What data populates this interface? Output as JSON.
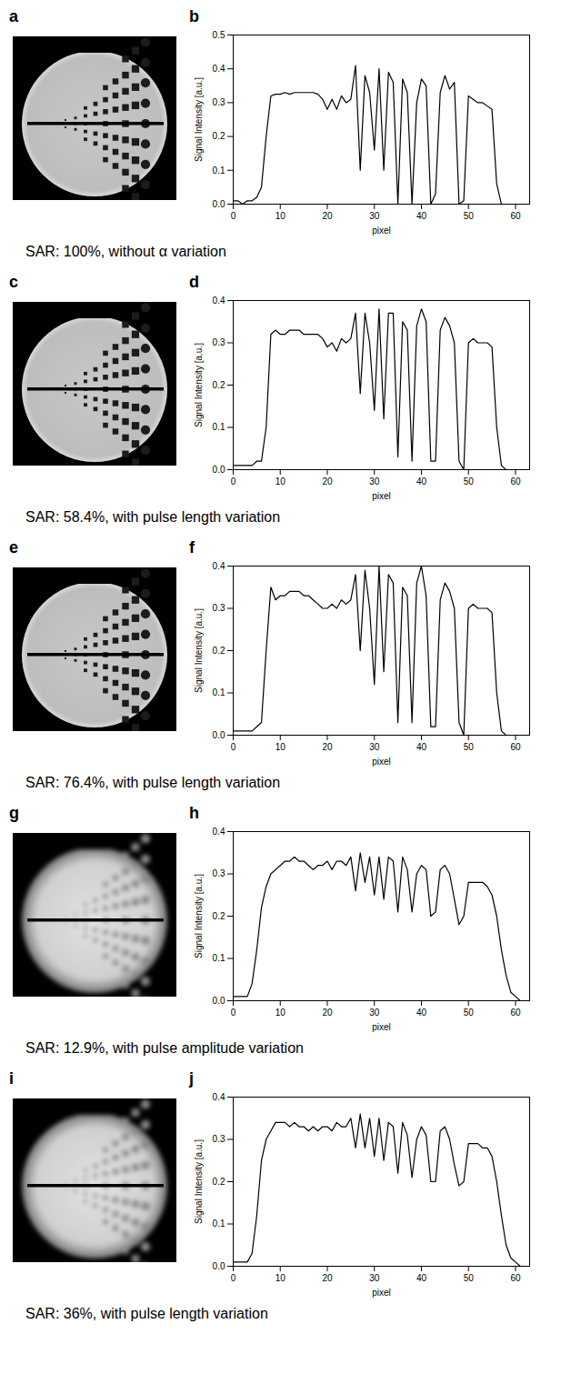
{
  "chart_data": [
    {
      "type": "line",
      "image_panel": "a",
      "panel": "b",
      "caption": "SAR: 100%, without α variation",
      "x_label": "pixel",
      "y_label": "Signal Intensity [a.u.]",
      "color": "#000000",
      "x": [
        0,
        1,
        2,
        3,
        4,
        5,
        6,
        7,
        8,
        9,
        10,
        11,
        12,
        13,
        14,
        15,
        16,
        17,
        18,
        19,
        20,
        21,
        22,
        23,
        24,
        25,
        26,
        27,
        28,
        29,
        30,
        31,
        32,
        33,
        34,
        35,
        36,
        37,
        38,
        39,
        40,
        41,
        42,
        43,
        44,
        45,
        46,
        47,
        48,
        49,
        50,
        51,
        52,
        53,
        54,
        55,
        56,
        57,
        58,
        59,
        60,
        61,
        62
      ],
      "values": [
        0.01,
        0.01,
        0.0,
        0.01,
        0.01,
        0.02,
        0.05,
        0.2,
        0.32,
        0.325,
        0.325,
        0.33,
        0.325,
        0.33,
        0.33,
        0.33,
        0.33,
        0.33,
        0.325,
        0.31,
        0.28,
        0.31,
        0.28,
        0.32,
        0.3,
        0.31,
        0.41,
        0.1,
        0.38,
        0.33,
        0.16,
        0.4,
        0.1,
        0.39,
        0.36,
        0.0,
        0.37,
        0.33,
        0.0,
        0.3,
        0.37,
        0.35,
        0.0,
        0.03,
        0.33,
        0.38,
        0.34,
        0.36,
        0.0,
        0.01,
        0.32,
        0.31,
        0.3,
        0.3,
        0.29,
        0.28,
        0.06,
        0.0,
        0.0,
        0.0,
        0.0,
        0.0,
        0.0
      ],
      "xlim": [
        0,
        63
      ],
      "xticks": [
        0,
        10,
        20,
        30,
        40,
        50,
        60
      ],
      "ylim": [
        0,
        0.5
      ],
      "yticks": [
        {
          "value": 0,
          "label": "0.0"
        },
        {
          "value": 0.1,
          "label": "0.1"
        },
        {
          "value": 0.2,
          "label": "0.2"
        },
        {
          "value": 0.3,
          "label": "0.3"
        },
        {
          "value": 0.4,
          "label": "0.4"
        },
        {
          "value": 0.5,
          "label": "0.5"
        }
      ]
    },
    {
      "type": "line",
      "image_panel": "c",
      "panel": "d",
      "caption": "SAR: 58.4%, with pulse length variation",
      "x_label": "pixel",
      "y_label": "Signal Intensity [a.u.]",
      "color": "#000000",
      "x": [
        0,
        1,
        2,
        3,
        4,
        5,
        6,
        7,
        8,
        9,
        10,
        11,
        12,
        13,
        14,
        15,
        16,
        17,
        18,
        19,
        20,
        21,
        22,
        23,
        24,
        25,
        26,
        27,
        28,
        29,
        30,
        31,
        32,
        33,
        34,
        35,
        36,
        37,
        38,
        39,
        40,
        41,
        42,
        43,
        44,
        45,
        46,
        47,
        48,
        49,
        50,
        51,
        52,
        53,
        54,
        55,
        56,
        57,
        58,
        59,
        60,
        61,
        62
      ],
      "values": [
        0.01,
        0.01,
        0.01,
        0.01,
        0.01,
        0.02,
        0.02,
        0.1,
        0.32,
        0.33,
        0.32,
        0.32,
        0.33,
        0.33,
        0.33,
        0.32,
        0.32,
        0.32,
        0.32,
        0.31,
        0.29,
        0.3,
        0.28,
        0.31,
        0.3,
        0.31,
        0.37,
        0.18,
        0.37,
        0.3,
        0.14,
        0.38,
        0.12,
        0.37,
        0.37,
        0.03,
        0.35,
        0.33,
        0.02,
        0.34,
        0.38,
        0.35,
        0.02,
        0.02,
        0.33,
        0.36,
        0.34,
        0.3,
        0.02,
        0.0,
        0.3,
        0.31,
        0.3,
        0.3,
        0.3,
        0.29,
        0.1,
        0.01,
        0.0,
        0.0,
        0.0,
        0.0,
        0.0
      ],
      "xlim": [
        0,
        63
      ],
      "xticks": [
        0,
        10,
        20,
        30,
        40,
        50,
        60
      ],
      "ylim": [
        0,
        0.4
      ],
      "yticks": [
        {
          "value": 0,
          "label": "0.0"
        },
        {
          "value": 0.1,
          "label": "0.1"
        },
        {
          "value": 0.2,
          "label": "0.2"
        },
        {
          "value": 0.3,
          "label": "0.3"
        },
        {
          "value": 0.4,
          "label": "0.4"
        }
      ]
    },
    {
      "type": "line",
      "image_panel": "e",
      "panel": "f",
      "caption": "SAR: 76.4%, with pulse length variation",
      "x_label": "pixel",
      "y_label": "Signal Intensity [a.u.]",
      "color": "#000000",
      "x": [
        0,
        1,
        2,
        3,
        4,
        5,
        6,
        7,
        8,
        9,
        10,
        11,
        12,
        13,
        14,
        15,
        16,
        17,
        18,
        19,
        20,
        21,
        22,
        23,
        24,
        25,
        26,
        27,
        28,
        29,
        30,
        31,
        32,
        33,
        34,
        35,
        36,
        37,
        38,
        39,
        40,
        41,
        42,
        43,
        44,
        45,
        46,
        47,
        48,
        49,
        50,
        51,
        52,
        53,
        54,
        55,
        56,
        57,
        58,
        59,
        60,
        61,
        62
      ],
      "values": [
        0.01,
        0.01,
        0.01,
        0.01,
        0.01,
        0.02,
        0.03,
        0.2,
        0.35,
        0.32,
        0.33,
        0.33,
        0.34,
        0.34,
        0.34,
        0.33,
        0.33,
        0.32,
        0.31,
        0.3,
        0.3,
        0.31,
        0.3,
        0.32,
        0.31,
        0.32,
        0.38,
        0.2,
        0.39,
        0.3,
        0.12,
        0.4,
        0.15,
        0.38,
        0.36,
        0.03,
        0.35,
        0.33,
        0.03,
        0.36,
        0.4,
        0.33,
        0.02,
        0.02,
        0.32,
        0.36,
        0.34,
        0.3,
        0.03,
        0.0,
        0.3,
        0.31,
        0.3,
        0.3,
        0.3,
        0.29,
        0.1,
        0.01,
        0.0,
        0.0,
        0.0,
        0.0,
        0.0
      ],
      "xlim": [
        0,
        63
      ],
      "xticks": [
        0,
        10,
        20,
        30,
        40,
        50,
        60
      ],
      "ylim": [
        0,
        0.4
      ],
      "yticks": [
        {
          "value": 0,
          "label": "0.0"
        },
        {
          "value": 0.1,
          "label": "0.1"
        },
        {
          "value": 0.2,
          "label": "0.2"
        },
        {
          "value": 0.3,
          "label": "0.3"
        },
        {
          "value": 0.4,
          "label": "0.4"
        }
      ]
    },
    {
      "type": "line",
      "image_panel": "g",
      "panel": "h",
      "caption": "SAR: 12.9%, with pulse amplitude variation",
      "x_label": "pixel",
      "y_label": "Signal Intensity [a.u.]",
      "color": "#000000",
      "x": [
        0,
        1,
        2,
        3,
        4,
        5,
        6,
        7,
        8,
        9,
        10,
        11,
        12,
        13,
        14,
        15,
        16,
        17,
        18,
        19,
        20,
        21,
        22,
        23,
        24,
        25,
        26,
        27,
        28,
        29,
        30,
        31,
        32,
        33,
        34,
        35,
        36,
        37,
        38,
        39,
        40,
        41,
        42,
        43,
        44,
        45,
        46,
        47,
        48,
        49,
        50,
        51,
        52,
        53,
        54,
        55,
        56,
        57,
        58,
        59,
        60,
        61,
        62
      ],
      "values": [
        0.01,
        0.01,
        0.01,
        0.01,
        0.04,
        0.12,
        0.22,
        0.27,
        0.3,
        0.31,
        0.32,
        0.33,
        0.33,
        0.34,
        0.33,
        0.33,
        0.32,
        0.31,
        0.32,
        0.32,
        0.33,
        0.31,
        0.33,
        0.33,
        0.32,
        0.34,
        0.26,
        0.35,
        0.28,
        0.34,
        0.25,
        0.34,
        0.24,
        0.34,
        0.33,
        0.21,
        0.34,
        0.31,
        0.21,
        0.3,
        0.32,
        0.31,
        0.2,
        0.21,
        0.31,
        0.32,
        0.3,
        0.24,
        0.18,
        0.2,
        0.28,
        0.28,
        0.28,
        0.28,
        0.27,
        0.25,
        0.2,
        0.12,
        0.06,
        0.02,
        0.01,
        0.0,
        0.0
      ],
      "xlim": [
        0,
        63
      ],
      "xticks": [
        0,
        10,
        20,
        30,
        40,
        50,
        60
      ],
      "ylim": [
        0,
        0.4
      ],
      "yticks": [
        {
          "value": 0,
          "label": "0.0"
        },
        {
          "value": 0.1,
          "label": "0.1"
        },
        {
          "value": 0.2,
          "label": "0.2"
        },
        {
          "value": 0.3,
          "label": "0.3"
        },
        {
          "value": 0.4,
          "label": "0.4"
        }
      ]
    },
    {
      "type": "line",
      "image_panel": "i",
      "panel": "j",
      "caption": "SAR: 36%, with pulse length variation",
      "x_label": "pixel",
      "y_label": "Signal Intensity [a.u.]",
      "color": "#000000",
      "x": [
        0,
        1,
        2,
        3,
        4,
        5,
        6,
        7,
        8,
        9,
        10,
        11,
        12,
        13,
        14,
        15,
        16,
        17,
        18,
        19,
        20,
        21,
        22,
        23,
        24,
        25,
        26,
        27,
        28,
        29,
        30,
        31,
        32,
        33,
        34,
        35,
        36,
        37,
        38,
        39,
        40,
        41,
        42,
        43,
        44,
        45,
        46,
        47,
        48,
        49,
        50,
        51,
        52,
        53,
        54,
        55,
        56,
        57,
        58,
        59,
        60,
        61,
        62
      ],
      "values": [
        0.01,
        0.01,
        0.01,
        0.01,
        0.03,
        0.12,
        0.25,
        0.3,
        0.32,
        0.34,
        0.34,
        0.34,
        0.33,
        0.34,
        0.33,
        0.33,
        0.32,
        0.33,
        0.32,
        0.33,
        0.33,
        0.32,
        0.34,
        0.33,
        0.33,
        0.35,
        0.28,
        0.36,
        0.28,
        0.35,
        0.26,
        0.35,
        0.25,
        0.34,
        0.33,
        0.22,
        0.34,
        0.31,
        0.21,
        0.3,
        0.33,
        0.31,
        0.2,
        0.2,
        0.32,
        0.33,
        0.3,
        0.24,
        0.19,
        0.2,
        0.29,
        0.29,
        0.29,
        0.28,
        0.28,
        0.26,
        0.2,
        0.12,
        0.05,
        0.02,
        0.01,
        0.0,
        0.0
      ],
      "xlim": [
        0,
        63
      ],
      "xticks": [
        0,
        10,
        20,
        30,
        40,
        50,
        60
      ],
      "ylim": [
        0,
        0.4
      ],
      "yticks": [
        {
          "value": 0,
          "label": "0.0"
        },
        {
          "value": 0.1,
          "label": "0.1"
        },
        {
          "value": 0.2,
          "label": "0.2"
        },
        {
          "value": 0.3,
          "label": "0.3"
        },
        {
          "value": 0.4,
          "label": "0.4"
        }
      ]
    }
  ]
}
